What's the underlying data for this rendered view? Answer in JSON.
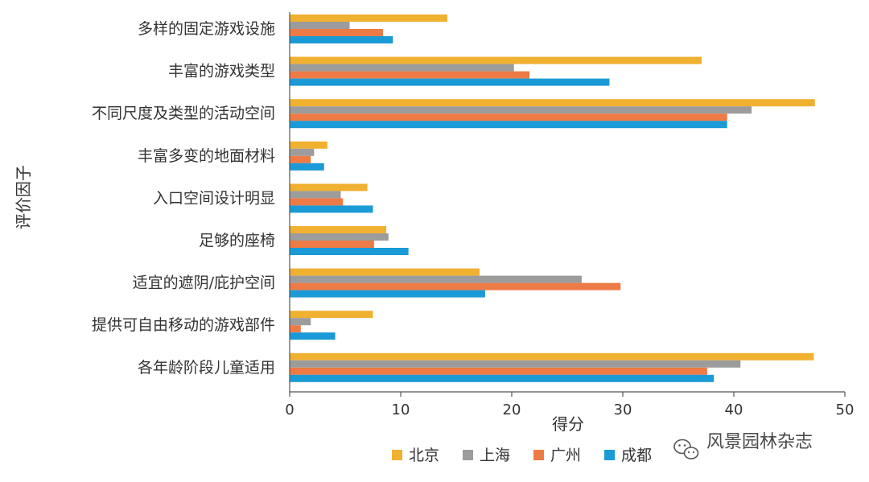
{
  "chart_data": {
    "type": "bar",
    "orientation": "horizontal",
    "title": "",
    "xlabel": "得分",
    "ylabel": "评价因子",
    "xlim": [
      0,
      50
    ],
    "xticks": [
      0,
      10,
      20,
      30,
      40,
      50
    ],
    "grid": false,
    "legend_position": "bottom",
    "categories": [
      "多样的固定游戏设施",
      "丰富的游戏类型",
      "不同尺度及类型的活动空间",
      "丰富多变的地面材料",
      "入口空间设计明显",
      "足够的座椅",
      "适宜的遮阴/庇护空间",
      "提供可自由移动的游戏部件",
      "各年龄阶段儿童适用"
    ],
    "series": [
      {
        "name": "北京",
        "color": "#F0B030",
        "values": [
          14.2,
          37.1,
          47.3,
          3.4,
          7.0,
          8.7,
          17.1,
          7.5,
          47.2
        ]
      },
      {
        "name": "上海",
        "color": "#9C9C9C",
        "values": [
          5.4,
          20.2,
          41.6,
          2.2,
          4.6,
          8.9,
          26.3,
          1.9,
          40.6
        ]
      },
      {
        "name": "广州",
        "color": "#EE7A45",
        "values": [
          8.4,
          21.6,
          39.4,
          1.9,
          4.8,
          7.6,
          29.8,
          1.0,
          37.6
        ]
      },
      {
        "name": "成都",
        "color": "#1A9AD6",
        "values": [
          9.3,
          28.8,
          39.4,
          3.1,
          7.5,
          10.7,
          17.6,
          4.1,
          38.2
        ]
      }
    ]
  },
  "watermark": {
    "icon": "wechat-icon",
    "text": "风景园林杂志"
  }
}
